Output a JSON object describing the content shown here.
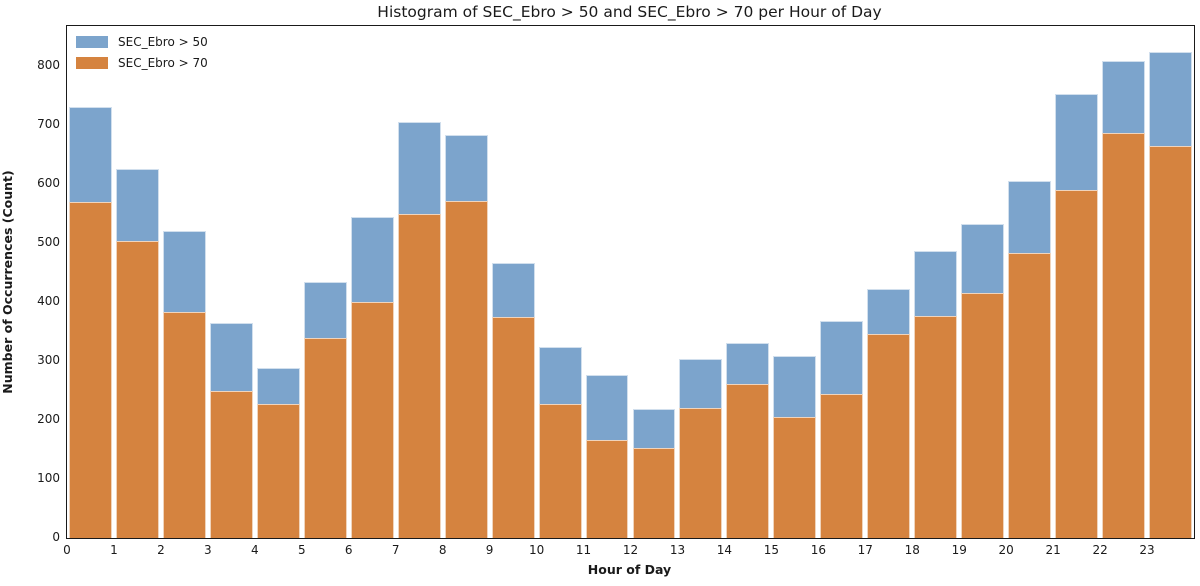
{
  "chart_data": {
    "type": "bar",
    "mode": "overlay",
    "title": "Histogram of SEC_Ebro > 50 and SEC_Ebro > 70 per Hour of Day",
    "xlabel": "Hour of Day",
    "ylabel": "Number of Occurrences (Count)",
    "categories": [
      0,
      1,
      2,
      3,
      4,
      5,
      6,
      7,
      8,
      9,
      10,
      11,
      12,
      13,
      14,
      15,
      16,
      17,
      18,
      19,
      20,
      21,
      22,
      23
    ],
    "series": [
      {
        "name": "SEC_Ebro > 50",
        "color": "#7CA4CC",
        "values": [
          731,
          625,
          520,
          364,
          289,
          434,
          544,
          706,
          683,
          466,
          324,
          277,
          218,
          304,
          330,
          308,
          368,
          423,
          486,
          533,
          605,
          752,
          809,
          824
        ]
      },
      {
        "name": "SEC_Ebro > 70",
        "color": "#D5833F",
        "values": [
          570,
          503,
          384,
          250,
          227,
          339,
          400,
          549,
          571,
          374,
          228,
          166,
          152,
          220,
          261,
          206,
          244,
          346,
          376,
          416,
          484,
          590,
          686,
          664
        ]
      }
    ],
    "ylim": [
      0,
      868
    ],
    "yticks": [
      0,
      100,
      200,
      300,
      400,
      500,
      600,
      700,
      800
    ],
    "grid": false,
    "legend_position": "upper left",
    "background": "#ffffff",
    "spine_color": "#1a1a1a"
  }
}
